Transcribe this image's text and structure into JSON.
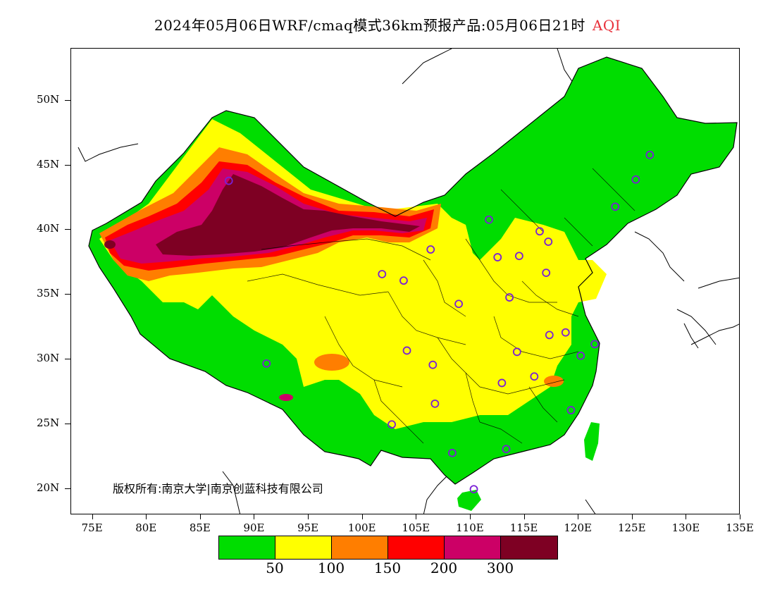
{
  "title": {
    "main": "2024年05月06日WRF/cmaq模式36km预报产品:05月06日21时",
    "variable": "AQI"
  },
  "axes": {
    "y_ticks": [
      {
        "label": "50N",
        "lat": 50
      },
      {
        "label": "45N",
        "lat": 45
      },
      {
        "label": "40N",
        "lat": 40
      },
      {
        "label": "35N",
        "lat": 35
      },
      {
        "label": "30N",
        "lat": 30
      },
      {
        "label": "25N",
        "lat": 25
      },
      {
        "label": "20N",
        "lat": 20
      }
    ],
    "x_ticks": [
      {
        "label": "75E",
        "lon": 75
      },
      {
        "label": "80E",
        "lon": 80
      },
      {
        "label": "85E",
        "lon": 85
      },
      {
        "label": "90E",
        "lon": 90
      },
      {
        "label": "95E",
        "lon": 95
      },
      {
        "label": "100E",
        "lon": 100
      },
      {
        "label": "105E",
        "lon": 105
      },
      {
        "label": "110E",
        "lon": 110
      },
      {
        "label": "115E",
        "lon": 115
      },
      {
        "label": "120E",
        "lon": 120
      },
      {
        "label": "125E",
        "lon": 125
      },
      {
        "label": "130E",
        "lon": 130
      },
      {
        "label": "135E",
        "lon": 135
      }
    ],
    "lon_range": [
      73,
      135
    ],
    "lat_range": [
      18,
      54
    ]
  },
  "copyright": "版权所有:南京大学|南京创蓝科技有限公司",
  "legend": {
    "colors": [
      "#00dd00",
      "#ffff00",
      "#ff7e00",
      "#ff0000",
      "#cc0066",
      "#7e0023"
    ],
    "labels": [
      "50",
      "100",
      "150",
      "200",
      "300"
    ]
  },
  "stations": [
    [
      87.6,
      43.8
    ],
    [
      91.1,
      29.7
    ],
    [
      101.8,
      36.6
    ],
    [
      103.8,
      36.1
    ],
    [
      106.3,
      38.5
    ],
    [
      111.7,
      40.8
    ],
    [
      112.5,
      37.9
    ],
    [
      114.5,
      38.0
    ],
    [
      116.4,
      39.9
    ],
    [
      117.2,
      39.1
    ],
    [
      117.0,
      36.7
    ],
    [
      113.6,
      34.8
    ],
    [
      108.9,
      34.3
    ],
    [
      104.1,
      30.7
    ],
    [
      106.5,
      29.6
    ],
    [
      106.7,
      26.6
    ],
    [
      102.7,
      25.0
    ],
    [
      108.3,
      22.8
    ],
    [
      110.3,
      20.0
    ],
    [
      113.3,
      23.1
    ],
    [
      112.9,
      28.2
    ],
    [
      114.3,
      30.6
    ],
    [
      115.9,
      28.7
    ],
    [
      117.3,
      31.9
    ],
    [
      118.8,
      32.1
    ],
    [
      120.2,
      30.3
    ],
    [
      121.5,
      31.2
    ],
    [
      119.3,
      26.1
    ],
    [
      123.4,
      41.8
    ],
    [
      125.3,
      43.9
    ],
    [
      126.6,
      45.8
    ]
  ]
}
